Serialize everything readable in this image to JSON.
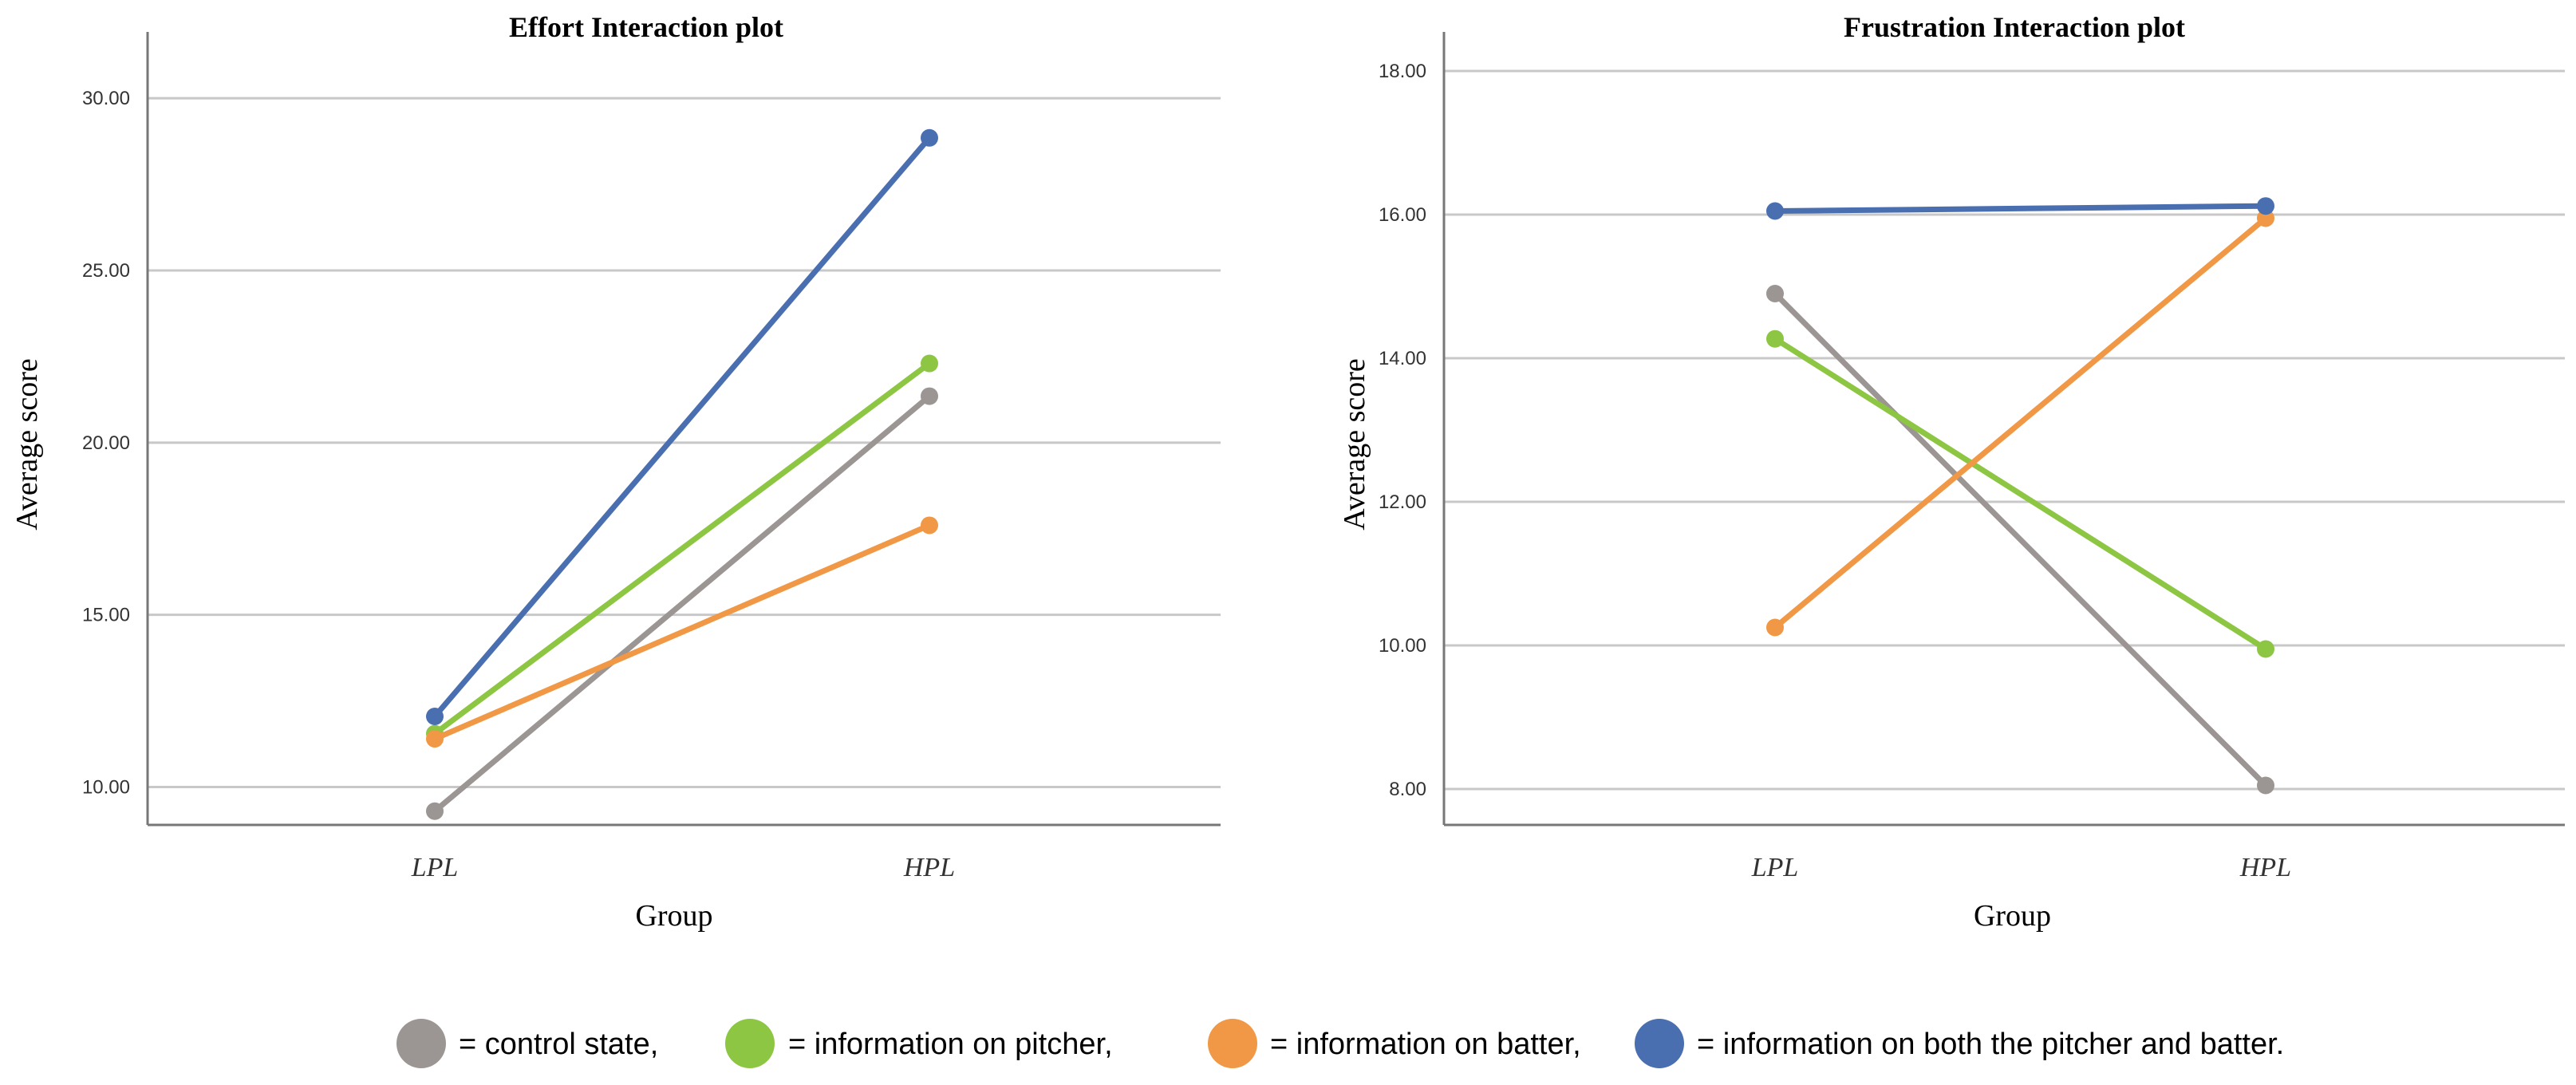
{
  "chart_data": [
    {
      "type": "line",
      "title": "Effort Interaction plot",
      "xlabel": "Group",
      "ylabel": "Average score",
      "categories": [
        "LPL",
        "HPL"
      ],
      "ylim": [
        8.9,
        31
      ],
      "yticks": [
        "10.00",
        "15.00",
        "20.00",
        "25.00",
        "30.00"
      ],
      "ytick_values": [
        10,
        15,
        20,
        25,
        30
      ],
      "series": [
        {
          "key": "control",
          "values": [
            9.3,
            21.35
          ]
        },
        {
          "key": "pitcher",
          "values": [
            11.55,
            22.3
          ]
        },
        {
          "key": "batter",
          "values": [
            11.4,
            17.6
          ]
        },
        {
          "key": "both",
          "values": [
            12.05,
            28.85
          ]
        }
      ]
    },
    {
      "type": "line",
      "title": "Frustration Interaction plot",
      "xlabel": "Group",
      "ylabel": "Average score",
      "categories": [
        "LPL",
        "HPL"
      ],
      "ylim": [
        7.5,
        18.1
      ],
      "yticks": [
        "8.00",
        "10.00",
        "12.00",
        "14.00",
        "16.00",
        "18.00"
      ],
      "ytick_values": [
        8,
        10,
        12,
        14,
        16,
        18
      ],
      "series": [
        {
          "key": "control",
          "values": [
            14.9,
            8.05
          ]
        },
        {
          "key": "pitcher",
          "values": [
            14.27,
            9.95
          ]
        },
        {
          "key": "batter",
          "values": [
            10.25,
            15.95
          ]
        },
        {
          "key": "both",
          "values": [
            16.05,
            16.12
          ]
        }
      ]
    }
  ],
  "legend": [
    {
      "key": "control",
      "label": "= control state,",
      "color": "#9b9593"
    },
    {
      "key": "pitcher",
      "label": "= information on pitcher,",
      "color": "#8dc642"
    },
    {
      "key": "batter",
      "label": "= information on batter,",
      "color": "#f09845"
    },
    {
      "key": "both",
      "label": "= information on both the pitcher and batter.",
      "color": "#4a6fb0"
    }
  ]
}
